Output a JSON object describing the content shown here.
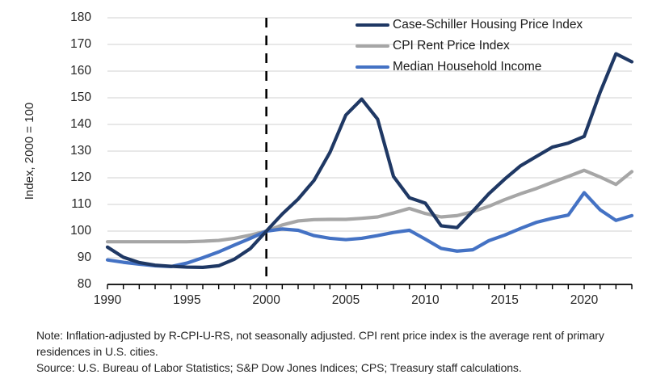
{
  "figure": {
    "y_axis_title": "Index, 2000 = 100"
  },
  "chart_data": {
    "type": "line",
    "title": "",
    "xlabel": "",
    "ylabel": "Index, 2000 = 100",
    "ylim": [
      80,
      180
    ],
    "yticks": [
      80,
      90,
      100,
      110,
      120,
      130,
      140,
      150,
      160,
      170,
      180
    ],
    "xlim": [
      1990,
      2023
    ],
    "xticks_labeled": [
      1990,
      1995,
      2000,
      2005,
      2010,
      2015,
      2020
    ],
    "xticks_minor_step": 1,
    "grid": "horizontal",
    "gridline_color": "#d9d9d9",
    "axis_color": "#000000",
    "reference_line": {
      "x": 2000,
      "style": "dashed",
      "color": "#000000"
    },
    "legend_position": "top-right",
    "x": [
      1990,
      1991,
      1992,
      1993,
      1994,
      1995,
      1996,
      1997,
      1998,
      1999,
      2000,
      2001,
      2002,
      2003,
      2004,
      2005,
      2006,
      2007,
      2008,
      2009,
      2010,
      2011,
      2012,
      2013,
      2014,
      2015,
      2016,
      2017,
      2018,
      2019,
      2020,
      2021,
      2022,
      2023
    ],
    "series": [
      {
        "name": "Case-Schiller Housing Price Index",
        "color": "#1f3864",
        "values": [
          94,
          90.2,
          88.2,
          87.2,
          86.8,
          86.5,
          86.4,
          87,
          89.5,
          93.5,
          100,
          106.4,
          112,
          119,
          129.5,
          143.5,
          149.5,
          142,
          120.5,
          112.5,
          110.5,
          102,
          101.3,
          107.5,
          114,
          119.5,
          124.5,
          128,
          131.5,
          133,
          135.5,
          152,
          166.5,
          163.5
        ]
      },
      {
        "name": "CPI Rent Price Index",
        "color": "#a6a6a6",
        "values": [
          96,
          96,
          96,
          96,
          96,
          96,
          96.2,
          96.5,
          97.3,
          98.5,
          100,
          102.3,
          103.8,
          104.3,
          104.4,
          104.4,
          104.8,
          105.3,
          106.8,
          108.5,
          106.6,
          105.3,
          105.8,
          107.3,
          109.3,
          111.8,
          114,
          116,
          118.3,
          120.5,
          122.8,
          120.3,
          117.5,
          122.3
        ]
      },
      {
        "name": "Median Household Income",
        "color": "#4472c4",
        "values": [
          89.2,
          88.3,
          87.6,
          87,
          86.7,
          88,
          90,
          92.2,
          94.8,
          97.3,
          100,
          100.8,
          100.3,
          98.3,
          97.3,
          96.8,
          97.3,
          98.3,
          99.5,
          100.3,
          97,
          93.5,
          92.5,
          93,
          96.4,
          98.5,
          101,
          103.3,
          104.8,
          106,
          114.4,
          108,
          104,
          105.8
        ]
      }
    ]
  },
  "notes": {
    "note": "Note: Inflation-adjusted by R-CPI-U-RS, not seasonally adjusted. CPI rent price index is the average rent of primary residences in U.S. cities.",
    "source": "Source: U.S. Bureau of Labor Statistics; S&P Dow Jones Indices; CPS; Treasury staff calculations."
  }
}
